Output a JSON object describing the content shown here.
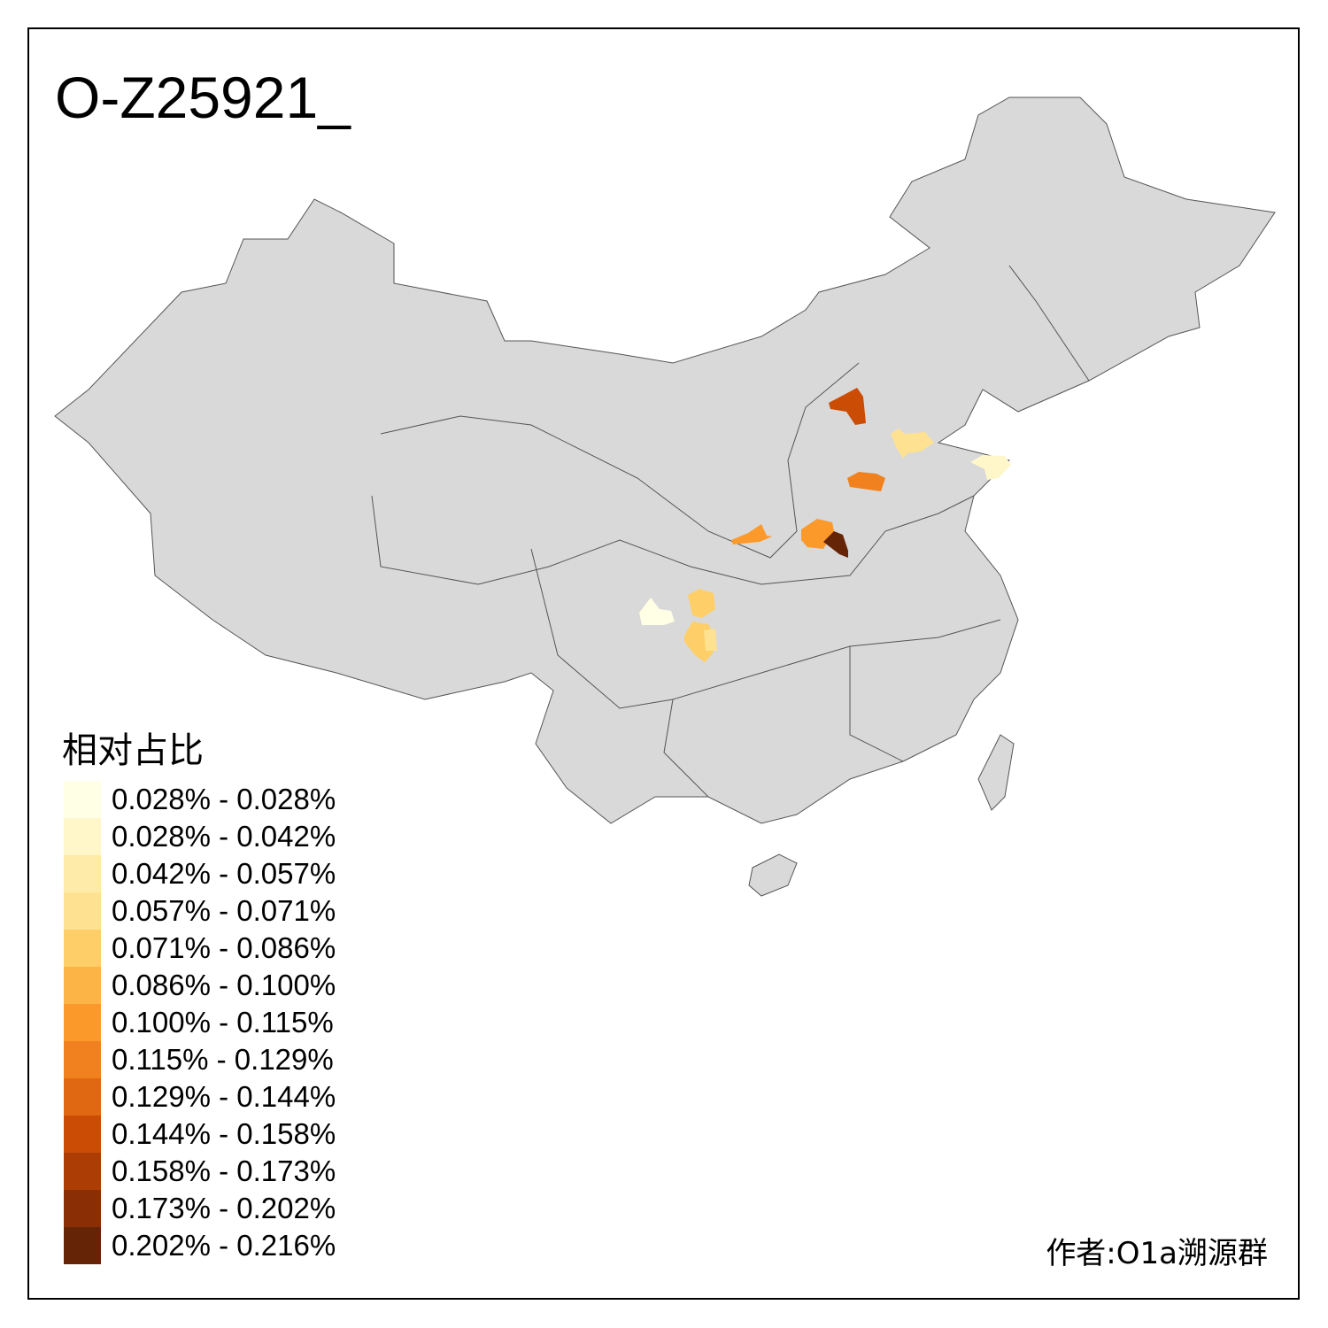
{
  "title": "O-Z25921_",
  "legend": {
    "title": "相对占比",
    "items": [
      {
        "label": "0.028% - 0.028%",
        "color": "#FFFFE5"
      },
      {
        "label": "0.028% - 0.042%",
        "color": "#FFF7CA"
      },
      {
        "label": "0.042% - 0.057%",
        "color": "#FEEBAA"
      },
      {
        "label": "0.057% - 0.071%",
        "color": "#FEE291"
      },
      {
        "label": "0.071% - 0.086%",
        "color": "#FECF68"
      },
      {
        "label": "0.086% - 0.100%",
        "color": "#FDB446"
      },
      {
        "label": "0.100% - 0.115%",
        "color": "#FB9A2B"
      },
      {
        "label": "0.115% - 0.129%",
        "color": "#F0811E"
      },
      {
        "label": "0.129% - 0.144%",
        "color": "#E06812"
      },
      {
        "label": "0.144% - 0.158%",
        "color": "#CB4C04"
      },
      {
        "label": "0.158% - 0.173%",
        "color": "#AC3D04"
      },
      {
        "label": "0.173% - 0.202%",
        "color": "#8A2E05"
      },
      {
        "label": "0.202% - 0.216%",
        "color": "#662407"
      }
    ]
  },
  "author": "作者:O1a溯源群",
  "colors": {
    "base_region": "#D9D9D9",
    "border": "#555555",
    "no_data": "#D9D9D9"
  }
}
